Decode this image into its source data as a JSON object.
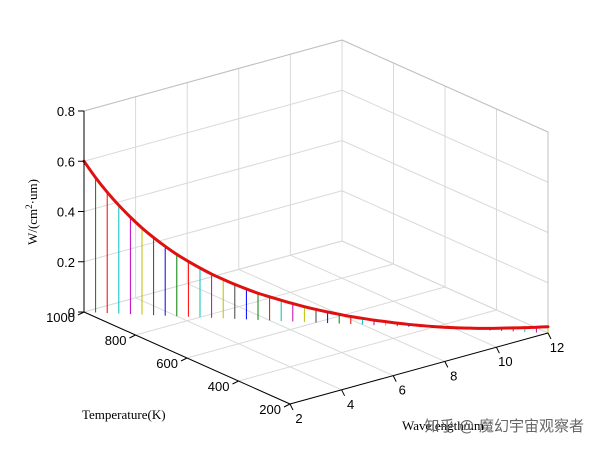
{
  "chart_data": {
    "type": "3d-stem-line",
    "title": "",
    "xlabel": "Wavelength/um",
    "ylabel": "Temperature(K)",
    "zlabel_main": "W/(cm",
    "zlabel_sup": "2",
    "zlabel_tail": "·um)",
    "x_ticks": [
      "2",
      "4",
      "6",
      "8",
      "10",
      "12"
    ],
    "y_ticks": [
      "200",
      "400",
      "600",
      "800",
      "1000"
    ],
    "z_ticks": [
      "0",
      "0.2",
      "0.4",
      "0.6",
      "0.8"
    ],
    "xlim": [
      2,
      12
    ],
    "ylim": [
      200,
      1000
    ],
    "zlim": [
      0,
      0.8
    ],
    "grid": true,
    "series": [
      {
        "line_color": "#e01010",
        "stem_colors": [
          "#0000ff",
          "#008000",
          "#ff0000",
          "#00bfbf",
          "#bf00bf",
          "#bfbf00",
          "#404040"
        ],
        "x": [
          2,
          2.25,
          2.5,
          2.75,
          3,
          3.25,
          3.5,
          3.75,
          4,
          4.25,
          4.5,
          4.75,
          5,
          5.25,
          5.5,
          5.75,
          6,
          6.25,
          6.5,
          6.75,
          7,
          7.25,
          7.5,
          7.75,
          8,
          8.25,
          8.5,
          8.75,
          9,
          9.25,
          9.5,
          9.75,
          10,
          10.25,
          10.5,
          10.75,
          11,
          11.25,
          11.5,
          11.75,
          12
        ],
        "y": [
          1000,
          980,
          960,
          940,
          920,
          900,
          880,
          860,
          840,
          820,
          800,
          780,
          760,
          740,
          720,
          700,
          680,
          660,
          640,
          620,
          600,
          580,
          560,
          540,
          520,
          500,
          480,
          460,
          440,
          420,
          400,
          380,
          360,
          340,
          320,
          300,
          280,
          260,
          240,
          220,
          200
        ],
        "z": [
          0.6,
          0.537,
          0.481,
          0.431,
          0.386,
          0.345,
          0.309,
          0.276,
          0.246,
          0.22,
          0.196,
          0.174,
          0.155,
          0.137,
          0.121,
          0.106,
          0.094,
          0.082,
          0.071,
          0.061,
          0.052,
          0.044,
          0.037,
          0.03,
          0.025,
          0.02,
          0.016,
          0.012,
          0.009,
          0.007,
          0.005,
          0.004,
          0.004,
          0.005,
          0.006,
          0.008,
          0.011,
          0.014,
          0.017,
          0.021,
          0.025
        ]
      }
    ]
  },
  "watermark": "知乎 @ 魔幻宇宙观察者"
}
